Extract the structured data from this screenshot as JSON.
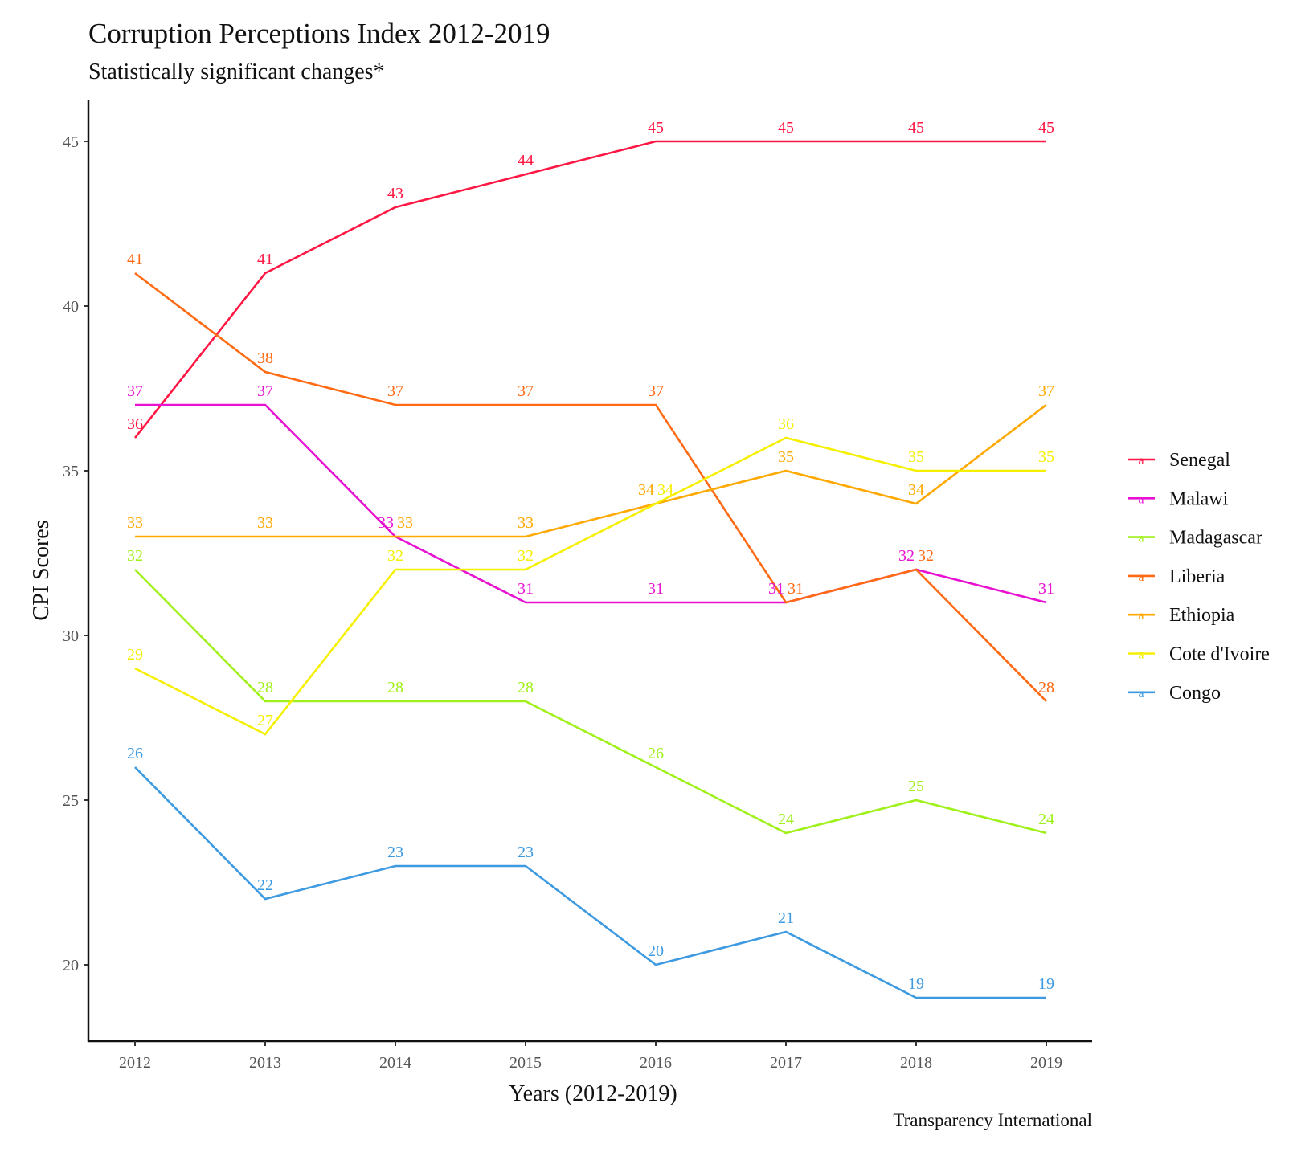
{
  "chart_data": {
    "type": "line",
    "title": "Corruption Perceptions Index 2012-2019",
    "subtitle": "Statistically significant changes*",
    "xlabel": "Years (2012-2019)",
    "ylabel": "CPI Scores",
    "caption": "Transparency International",
    "x": [
      2012,
      2013,
      2014,
      2015,
      2016,
      2017,
      2018,
      2019
    ],
    "x_tick_labels": [
      "2012",
      "2013",
      "2014",
      "2015",
      "2016",
      "2017",
      "2018",
      "2019"
    ],
    "y_ticks": [
      20,
      25,
      30,
      35,
      40,
      45
    ],
    "ylim": [
      17.7,
      46.3
    ],
    "grid": false,
    "legend_position": "right",
    "data_labels": true,
    "series": [
      {
        "name": "Senegal",
        "color": "#ff1744",
        "values": [
          36,
          41,
          43,
          44,
          45,
          45,
          45,
          45
        ]
      },
      {
        "name": "Malawi",
        "color": "#e812d2",
        "values": [
          37,
          37,
          33,
          31,
          31,
          31,
          32,
          31
        ]
      },
      {
        "name": "Madagascar",
        "color": "#a0f01a",
        "values": [
          32,
          28,
          28,
          28,
          26,
          24,
          25,
          24
        ]
      },
      {
        "name": "Liberia",
        "color": "#ff6a13",
        "values": [
          41,
          38,
          37,
          37,
          37,
          31,
          32,
          28
        ]
      },
      {
        "name": "Ethiopia",
        "color": "#ffa800",
        "values": [
          33,
          33,
          33,
          33,
          34,
          35,
          34,
          37
        ]
      },
      {
        "name": "Cote d'Ivoire",
        "color": "#f5f000",
        "values": [
          29,
          27,
          32,
          32,
          34,
          36,
          35,
          35
        ]
      },
      {
        "name": "Congo",
        "color": "#3d9ae0",
        "values": [
          26,
          22,
          23,
          23,
          20,
          21,
          19,
          19
        ]
      }
    ]
  }
}
